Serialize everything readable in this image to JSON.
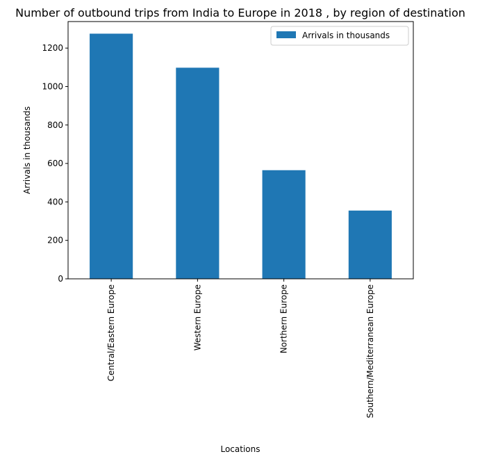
{
  "chart_data": {
    "type": "bar",
    "title": "Number of outbound trips from India to Europe in 2018 , by region of destination",
    "xlabel": "Locations",
    "ylabel": "Arrivals in thousands",
    "categories": [
      "Central/Eastern Europe",
      "Western Europe",
      "Northern Europe",
      "Southern/Mediterranean Europe"
    ],
    "series": [
      {
        "name": "Arrivals in thousands",
        "values": [
          1275,
          1098,
          565,
          355
        ],
        "color": "#1f77b4"
      }
    ],
    "ylim": [
      0,
      1338
    ],
    "yticks": [
      0,
      200,
      400,
      600,
      800,
      1000,
      1200
    ],
    "grid": false,
    "legend_position": "top-right"
  }
}
